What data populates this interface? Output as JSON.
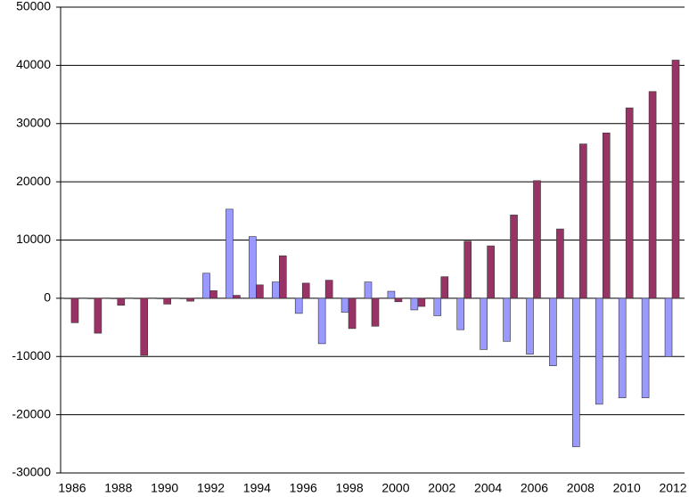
{
  "chart_data": {
    "type": "bar",
    "categories": [
      "1986",
      null,
      "1988",
      null,
      "1990",
      null,
      "1992",
      null,
      "1994",
      null,
      "1996",
      null,
      "1998",
      null,
      "2000",
      null,
      "2002",
      null,
      "2004",
      null,
      "2006",
      null,
      "2008",
      null,
      "2010",
      null,
      "2012"
    ],
    "series": [
      {
        "color": "#9999ff",
        "values": [
          0,
          0,
          0,
          0,
          0,
          0,
          4300,
          15300,
          10600,
          2800,
          -2600,
          -7800,
          -2400,
          2800,
          1200,
          -2000,
          -3000,
          -5400,
          -8800,
          -7400,
          -9600,
          -11600,
          -25500,
          -18200,
          -17100,
          -17100,
          -10000
        ]
      },
      {
        "color": "#993366",
        "values": [
          -4200,
          -6000,
          -1200,
          -9800,
          -1000,
          -500,
          1300,
          500,
          2300,
          7300,
          2600,
          3100,
          -5200,
          -4800,
          -600,
          -1400,
          3700,
          9800,
          9000,
          14300,
          20200,
          11900,
          26500,
          28400,
          32700,
          35500,
          40900
        ]
      }
    ],
    "ylim": [
      -30000,
      50000
    ],
    "yticks": [
      -30000,
      -20000,
      -10000,
      0,
      10000,
      20000,
      30000,
      40000,
      50000
    ],
    "grid": true
  }
}
